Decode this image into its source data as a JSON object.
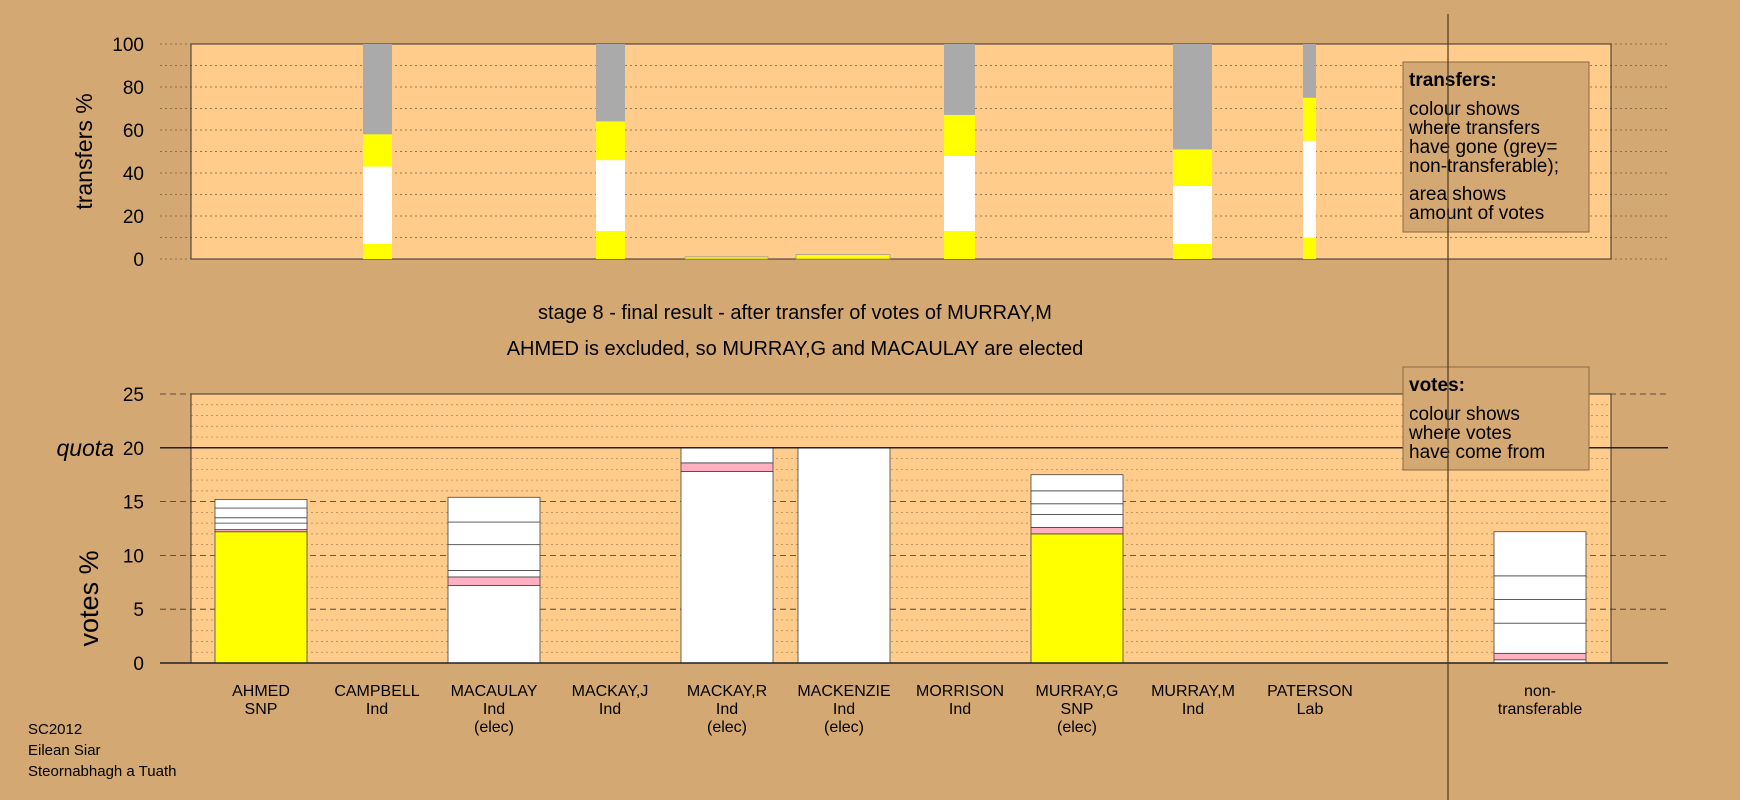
{
  "chart_data": [
    {
      "type": "bar",
      "stacked": true,
      "ylabel": "transfers %",
      "ylim": [
        0,
        100
      ],
      "yticks": [
        0,
        20,
        40,
        60,
        80,
        100
      ],
      "grid": true,
      "series_colors": {
        "snp": "#ffff00",
        "ind": "#ffffff",
        "lab": "#ffb0c0",
        "nontransferable": "#aaaaaa"
      },
      "bars": [
        {
          "category": "CAMPBELL",
          "segments": [
            {
              "color": "#ffff00",
              "value": 7
            },
            {
              "color": "#ffffff",
              "value": 36
            },
            {
              "color": "#ffff00",
              "value": 15
            },
            {
              "color": "#aaaaaa",
              "value": 42
            }
          ]
        },
        {
          "category": "MACKAY,J",
          "segments": [
            {
              "color": "#ffff00",
              "value": 13
            },
            {
              "color": "#ffffff",
              "value": 33
            },
            {
              "color": "#ffff00",
              "value": 18
            },
            {
              "color": "#aaaaaa",
              "value": 36
            }
          ]
        },
        {
          "category": "MACKAY,R",
          "segments": [
            {
              "color": "#ffff00",
              "value": 1
            }
          ]
        },
        {
          "category": "MACKENZIE",
          "segments": [
            {
              "color": "#ffff00",
              "value": 2
            }
          ]
        },
        {
          "category": "MORRISON",
          "segments": [
            {
              "color": "#ffff00",
              "value": 13
            },
            {
              "color": "#ffffff",
              "value": 35
            },
            {
              "color": "#ffff00",
              "value": 19
            },
            {
              "color": "#aaaaaa",
              "value": 33
            }
          ]
        },
        {
          "category": "MURRAY,M",
          "segments": [
            {
              "color": "#ffff00",
              "value": 7
            },
            {
              "color": "#ffffff",
              "value": 27
            },
            {
              "color": "#ffff00",
              "value": 17
            },
            {
              "color": "#aaaaaa",
              "value": 49
            }
          ]
        },
        {
          "category": "PATERSON",
          "segments": [
            {
              "color": "#ffff00",
              "value": 10
            },
            {
              "color": "#ffffff",
              "value": 45
            },
            {
              "color": "#ffff00",
              "value": 20
            },
            {
              "color": "#aaaaaa",
              "value": 25
            }
          ]
        }
      ]
    },
    {
      "type": "bar",
      "stacked": true,
      "ylabel": "votes %",
      "ylim": [
        0,
        25
      ],
      "yticks": [
        0,
        5,
        10,
        15,
        20,
        25
      ],
      "quota": 20,
      "quota_label": "quota",
      "grid": true,
      "categories": [
        {
          "name": "AHMED",
          "party": "SNP",
          "status": ""
        },
        {
          "name": "CAMPBELL",
          "party": "Ind",
          "status": ""
        },
        {
          "name": "MACAULAY",
          "party": "Ind",
          "status": "(elec)"
        },
        {
          "name": "MACKAY,J",
          "party": "Ind",
          "status": ""
        },
        {
          "name": "MACKAY,R",
          "party": "Ind",
          "status": "(elec)"
        },
        {
          "name": "MACKENZIE",
          "party": "Ind",
          "status": "(elec)"
        },
        {
          "name": "MORRISON",
          "party": "Ind",
          "status": ""
        },
        {
          "name": "MURRAY,G",
          "party": "SNP",
          "status": "(elec)"
        },
        {
          "name": "MURRAY,M",
          "party": "Ind",
          "status": ""
        },
        {
          "name": "PATERSON",
          "party": "Lab",
          "status": ""
        },
        {
          "name": "non-",
          "party": "transferable",
          "status": ""
        }
      ],
      "bars": [
        {
          "segments": [
            {
              "color": "#ffff00",
              "value": 12.2
            },
            {
              "color": "#ffb0c0",
              "value": 0.2
            },
            {
              "color": "#ffffff",
              "value": 0.6
            },
            {
              "color": "#ffffff",
              "value": 0.5
            },
            {
              "color": "#ffffff",
              "value": 0.9
            },
            {
              "color": "#ffffff",
              "value": 0.8
            }
          ]
        },
        {
          "segments": []
        },
        {
          "segments": [
            {
              "color": "#ffffff",
              "value": 7.2
            },
            {
              "color": "#ffb0c0",
              "value": 0.8
            },
            {
              "color": "#ffffff",
              "value": 0.6
            },
            {
              "color": "#ffffff",
              "value": 2.4
            },
            {
              "color": "#ffffff",
              "value": 2.1
            },
            {
              "color": "#ffffff",
              "value": 2.3
            }
          ]
        },
        {
          "segments": []
        },
        {
          "segments": [
            {
              "color": "#ffffff",
              "value": 17.8
            },
            {
              "color": "#ffb0c0",
              "value": 0.8
            },
            {
              "color": "#ffffff",
              "value": 1.4
            }
          ]
        },
        {
          "segments": [
            {
              "color": "#ffffff",
              "value": 20
            }
          ]
        },
        {
          "segments": []
        },
        {
          "segments": [
            {
              "color": "#ffff00",
              "value": 12
            },
            {
              "color": "#ffb0c0",
              "value": 0.6
            },
            {
              "color": "#ffffff",
              "value": 1.2
            },
            {
              "color": "#ffffff",
              "value": 1.0
            },
            {
              "color": "#ffffff",
              "value": 1.2
            },
            {
              "color": "#ffffff",
              "value": 1.5
            }
          ]
        },
        {
          "segments": []
        },
        {
          "segments": []
        },
        {
          "segments": [
            {
              "color": "#ffffff",
              "value": 0.3
            },
            {
              "color": "#ffb0c0",
              "value": 0.6
            },
            {
              "color": "#ffffff",
              "value": 2.8
            },
            {
              "color": "#ffffff",
              "value": 2.2
            },
            {
              "color": "#ffffff",
              "value": 2.2
            },
            {
              "color": "#ffffff",
              "value": 4.1
            }
          ]
        }
      ]
    }
  ],
  "titles": {
    "stage": "stage 8 - final result - after transfer of votes of MURRAY,M",
    "result": "AHMED is excluded, so MURRAY,G and MACAULAY are elected"
  },
  "legend_transfers": {
    "heading": "transfers:",
    "lines1": [
      "colour shows",
      "where transfers",
      "have gone (grey=",
      "non-transferable);"
    ],
    "lines2": [
      "area shows",
      "amount of votes"
    ]
  },
  "legend_votes": {
    "heading": "votes:",
    "lines1": [
      "colour shows",
      "where votes",
      "have come from"
    ]
  },
  "footer": [
    "SC2012",
    "Eilean Siar",
    "Steornabhagh a Tuath"
  ],
  "colors": {
    "background": "#d4a872",
    "plot": "#ffcc8c",
    "snp": "#ffff00",
    "ind": "#ffffff",
    "lab": "#ffb0c0",
    "nontransferable": "#aaaaaa"
  }
}
